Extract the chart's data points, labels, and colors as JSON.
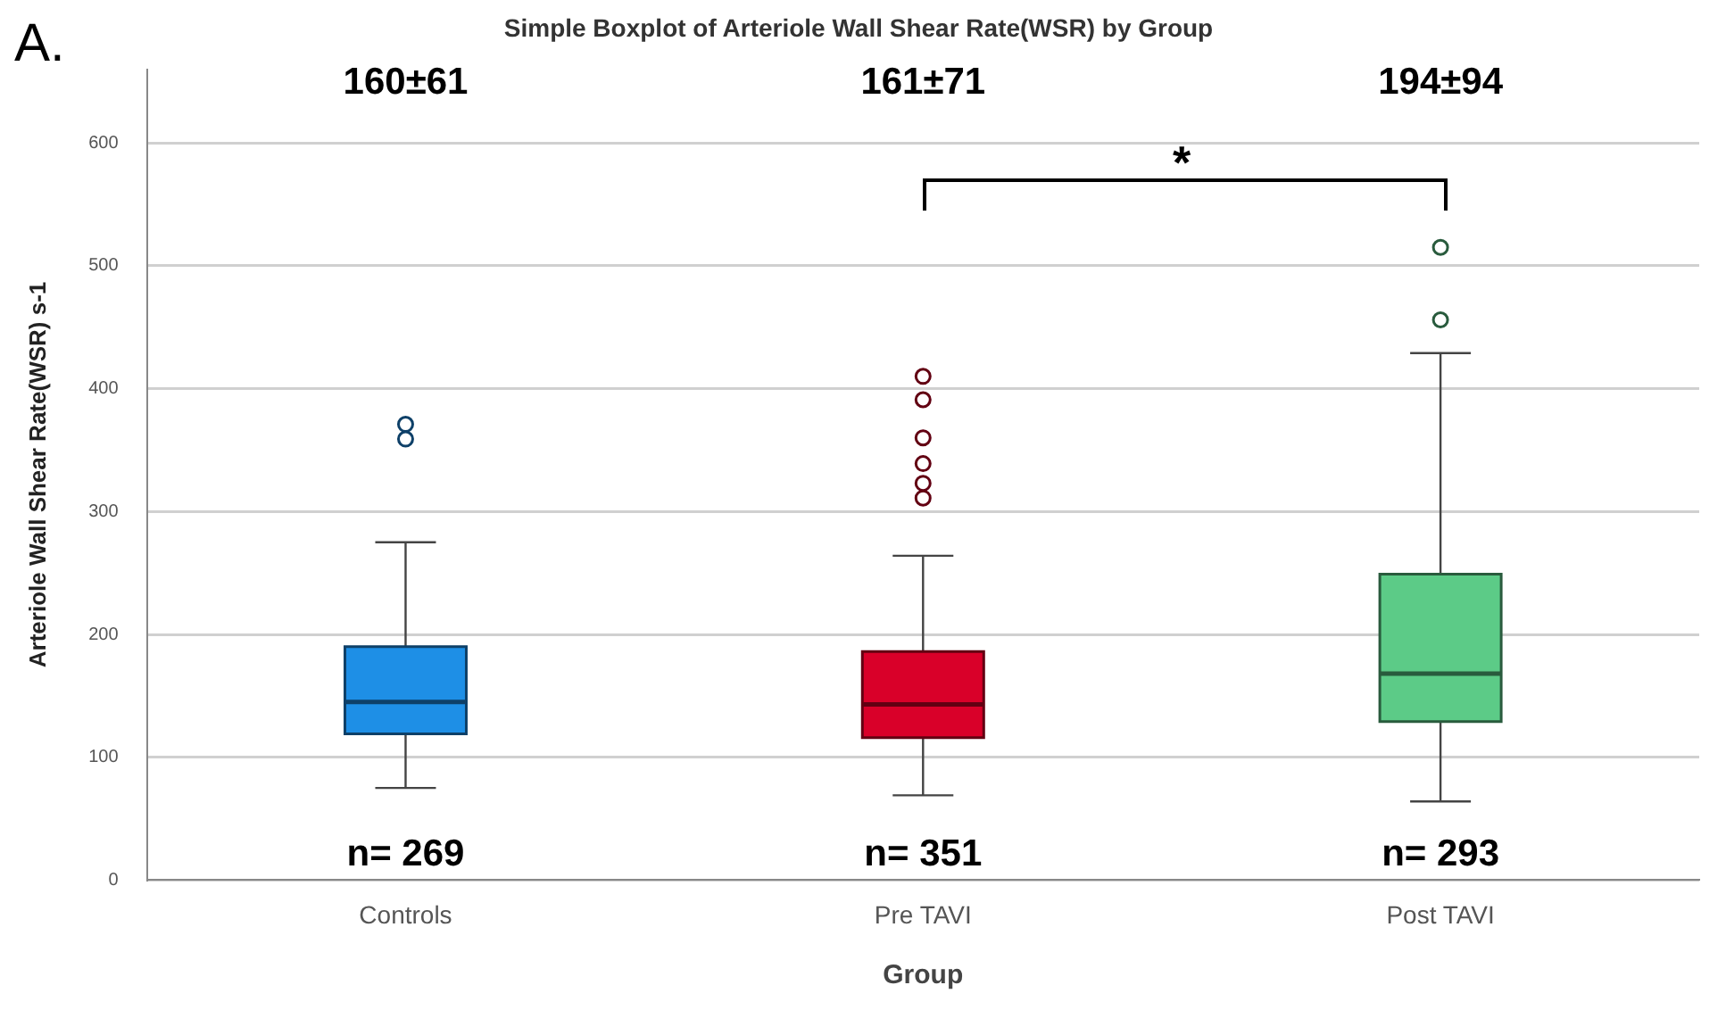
{
  "chart_data": {
    "type": "box",
    "title": "Simple Boxplot of Arteriole Wall Shear Rate(WSR) by Group",
    "xlabel": "Group",
    "ylabel": "Arteriole Wall Shear Rate(WSR) s-1",
    "categories": [
      "Controls",
      "Pre TAVI",
      "Post TAVI"
    ],
    "colors": [
      "#1e8fe6",
      "#d90029",
      "#5ccb87"
    ],
    "boxes": [
      {
        "low": 75,
        "q1": 119,
        "median": 145,
        "q3": 190,
        "high": 275,
        "outliers": [
          359,
          371
        ]
      },
      {
        "low": 69,
        "q1": 116,
        "median": 143,
        "q3": 186,
        "high": 264,
        "outliers": [
          311,
          323,
          339,
          360,
          391,
          410
        ]
      },
      {
        "low": 64,
        "q1": 129,
        "median": 168,
        "q3": 249,
        "high": 429,
        "outliers": [
          456,
          515
        ]
      }
    ],
    "ylim": [
      0,
      660
    ],
    "yticks": [
      0,
      100,
      200,
      300,
      400,
      500,
      600
    ],
    "grid": "y",
    "legend": false,
    "annotations": [
      "A.",
      "*",
      "160±61",
      "161±71",
      "194±94",
      "n= 269",
      "n= 351",
      "n= 293"
    ]
  }
}
